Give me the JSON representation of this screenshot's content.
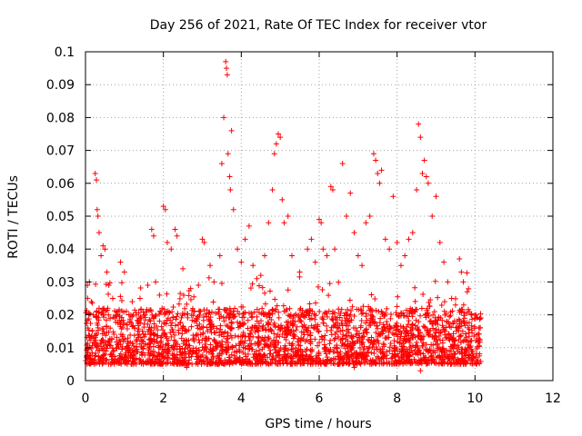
{
  "chart_data": {
    "type": "scatter",
    "title": "Day 256 of 2021, Rate Of TEC Index for receiver vtor",
    "xlabel": "GPS time / hours",
    "ylabel": "ROTI / TECUs",
    "xlim": [
      0,
      12
    ],
    "ylim": [
      0,
      0.1
    ],
    "x_ticks": [
      "0",
      "2",
      "4",
      "6",
      "8",
      "10",
      "12"
    ],
    "y_ticks": [
      "0",
      "0.01",
      "0.02",
      "0.03",
      "0.04",
      "0.05",
      "0.06",
      "0.07",
      "0.08",
      "0.09",
      "0.1"
    ],
    "grid": true,
    "marker": "+",
    "color": "#ff0000",
    "series": [
      {
        "points": [
          [
            0.05,
            0.029
          ],
          [
            0.1,
            0.03
          ],
          [
            0.15,
            0.024
          ],
          [
            0.2,
            0.02
          ],
          [
            0.25,
            0.063
          ],
          [
            0.28,
            0.061
          ],
          [
            0.3,
            0.052
          ],
          [
            0.32,
            0.05
          ],
          [
            0.35,
            0.045
          ],
          [
            0.4,
            0.038
          ],
          [
            0.45,
            0.041
          ],
          [
            0.5,
            0.04
          ],
          [
            0.55,
            0.033
          ],
          [
            0.6,
            0.029
          ],
          [
            0.7,
            0.025
          ],
          [
            0.8,
            0.021
          ],
          [
            0.9,
            0.036
          ],
          [
            1.0,
            0.033
          ],
          [
            1.2,
            0.024
          ],
          [
            1.4,
            0.025
          ],
          [
            1.6,
            0.029
          ],
          [
            1.7,
            0.046
          ],
          [
            1.75,
            0.044
          ],
          [
            1.8,
            0.03
          ],
          [
            1.9,
            0.026
          ],
          [
            2.0,
            0.053
          ],
          [
            2.05,
            0.052
          ],
          [
            2.1,
            0.042
          ],
          [
            2.2,
            0.04
          ],
          [
            2.3,
            0.046
          ],
          [
            2.35,
            0.044
          ],
          [
            2.5,
            0.034
          ],
          [
            2.7,
            0.028
          ],
          [
            2.9,
            0.029
          ],
          [
            3.0,
            0.043
          ],
          [
            3.05,
            0.042
          ],
          [
            3.2,
            0.035
          ],
          [
            3.3,
            0.03
          ],
          [
            3.45,
            0.038
          ],
          [
            3.5,
            0.066
          ],
          [
            3.55,
            0.08
          ],
          [
            3.6,
            0.097
          ],
          [
            3.62,
            0.095
          ],
          [
            3.64,
            0.093
          ],
          [
            3.66,
            0.069
          ],
          [
            3.7,
            0.062
          ],
          [
            3.72,
            0.058
          ],
          [
            3.75,
            0.076
          ],
          [
            3.8,
            0.052
          ],
          [
            3.9,
            0.04
          ],
          [
            4.0,
            0.036
          ],
          [
            4.1,
            0.043
          ],
          [
            4.2,
            0.047
          ],
          [
            4.3,
            0.035
          ],
          [
            4.4,
            0.031
          ],
          [
            4.5,
            0.032
          ],
          [
            4.6,
            0.038
          ],
          [
            4.7,
            0.048
          ],
          [
            4.8,
            0.058
          ],
          [
            4.85,
            0.069
          ],
          [
            4.9,
            0.072
          ],
          [
            4.95,
            0.075
          ],
          [
            5.0,
            0.074
          ],
          [
            5.05,
            0.055
          ],
          [
            5.1,
            0.048
          ],
          [
            5.2,
            0.05
          ],
          [
            5.3,
            0.038
          ],
          [
            5.5,
            0.033
          ],
          [
            5.7,
            0.04
          ],
          [
            5.8,
            0.043
          ],
          [
            5.9,
            0.036
          ],
          [
            6.0,
            0.049
          ],
          [
            6.05,
            0.048
          ],
          [
            6.1,
            0.04
          ],
          [
            6.2,
            0.038
          ],
          [
            6.3,
            0.059
          ],
          [
            6.35,
            0.058
          ],
          [
            6.4,
            0.04
          ],
          [
            6.6,
            0.066
          ],
          [
            6.7,
            0.05
          ],
          [
            6.8,
            0.057
          ],
          [
            6.9,
            0.045
          ],
          [
            7.0,
            0.038
          ],
          [
            7.1,
            0.035
          ],
          [
            7.2,
            0.048
          ],
          [
            7.3,
            0.05
          ],
          [
            7.4,
            0.069
          ],
          [
            7.45,
            0.067
          ],
          [
            7.5,
            0.063
          ],
          [
            7.55,
            0.06
          ],
          [
            7.6,
            0.064
          ],
          [
            7.7,
            0.043
          ],
          [
            7.8,
            0.04
          ],
          [
            7.9,
            0.056
          ],
          [
            8.0,
            0.042
          ],
          [
            8.1,
            0.035
          ],
          [
            8.2,
            0.038
          ],
          [
            8.3,
            0.043
          ],
          [
            8.4,
            0.045
          ],
          [
            8.5,
            0.058
          ],
          [
            8.55,
            0.078
          ],
          [
            8.6,
            0.074
          ],
          [
            8.65,
            0.063
          ],
          [
            8.7,
            0.067
          ],
          [
            8.75,
            0.062
          ],
          [
            8.8,
            0.06
          ],
          [
            8.9,
            0.05
          ],
          [
            9.0,
            0.056
          ],
          [
            9.1,
            0.042
          ],
          [
            9.2,
            0.036
          ],
          [
            9.3,
            0.03
          ],
          [
            9.4,
            0.025
          ],
          [
            9.5,
            0.023
          ],
          [
            9.6,
            0.037
          ],
          [
            9.65,
            0.033
          ],
          [
            9.7,
            0.03
          ],
          [
            9.8,
            0.027
          ],
          [
            9.9,
            0.02
          ],
          [
            10.0,
            0.019
          ],
          [
            10.1,
            0.016
          ],
          [
            8.6,
            0.003
          ],
          [
            6.9,
            0.004
          ],
          [
            2.6,
            0.004
          ],
          [
            4.7,
            0.005
          ],
          [
            1.3,
            0.005
          ]
        ],
        "band": {
          "x_range": [
            0,
            10.15
          ],
          "y_range": [
            0.005,
            0.022
          ],
          "count": 2600
        }
      }
    ]
  }
}
